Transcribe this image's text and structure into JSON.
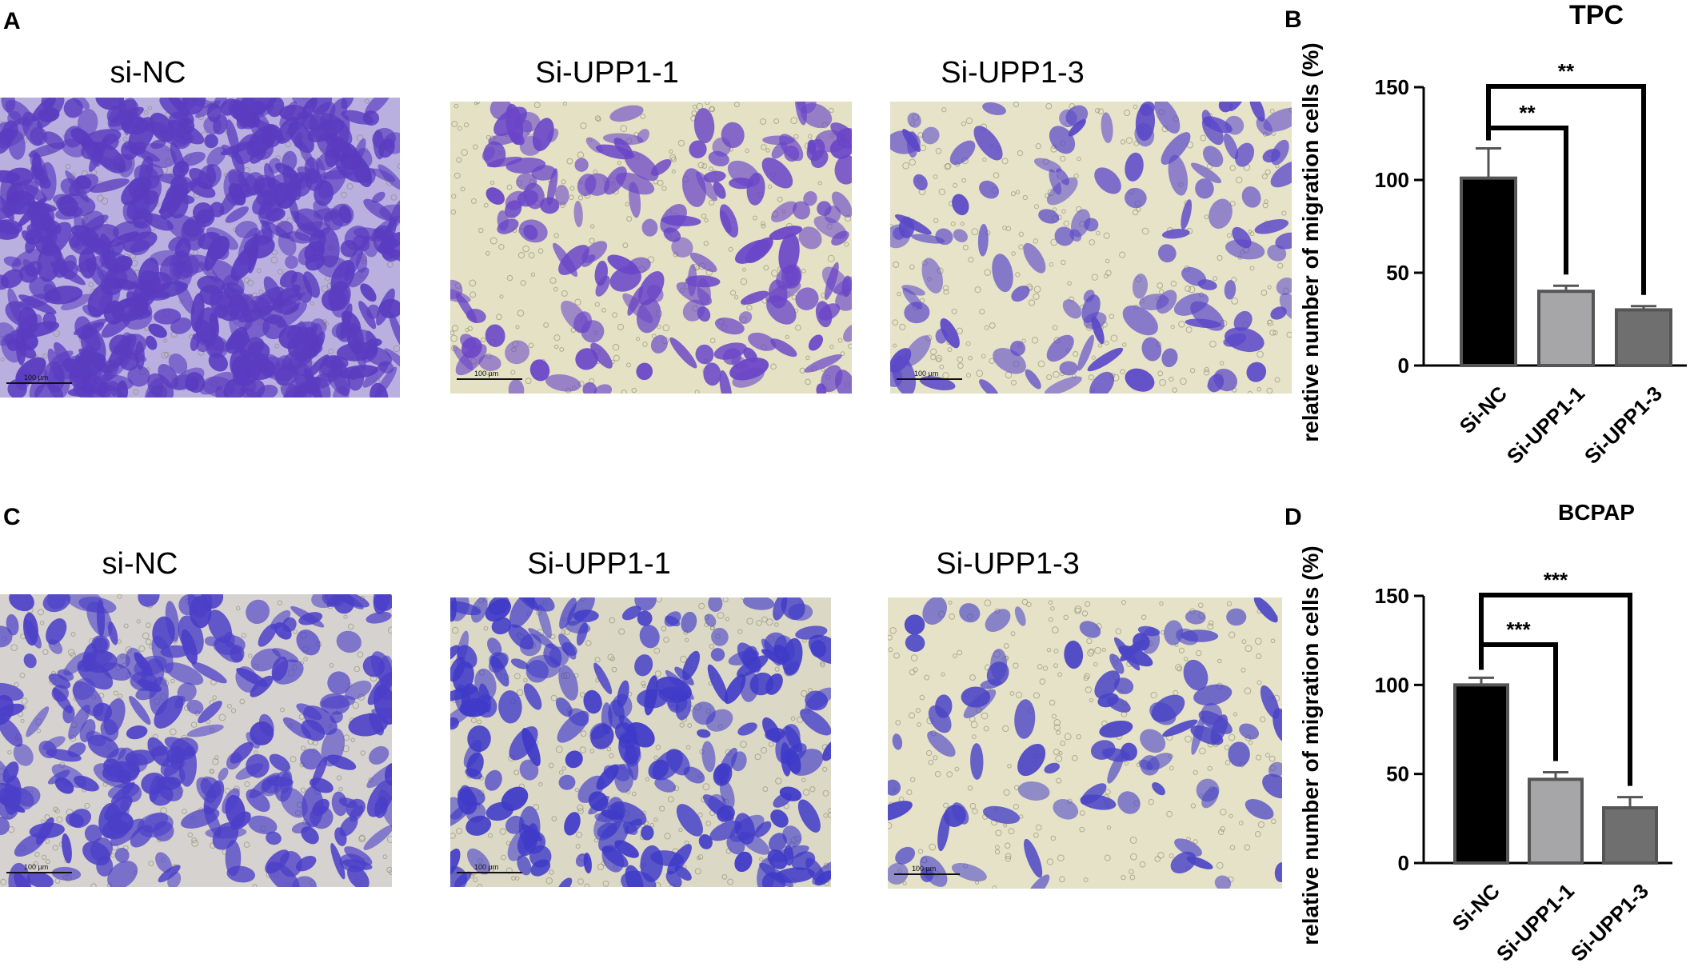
{
  "panels": {
    "A": {
      "letter": "A",
      "labels": [
        "si-NC",
        "Si-UPP1-1",
        "Si-UPP1-3"
      ],
      "scale_text": "100 µm"
    },
    "C": {
      "letter": "C",
      "labels": [
        "si-NC",
        "Si-UPP1-1",
        "Si-UPP1-3"
      ],
      "scale_text": "100 µm"
    },
    "B": {
      "letter": "B"
    },
    "D": {
      "letter": "D"
    }
  },
  "chart_data": [
    {
      "type": "bar",
      "title": "TPC",
      "ylabel": "relative number of migration cells (%)",
      "categories": [
        "Si-NC",
        "Si-UPP1-1",
        "Si-UPP1-3"
      ],
      "values": [
        101,
        40,
        30
      ],
      "errors": [
        16,
        3,
        2
      ],
      "colors": [
        "#000000",
        "#a6a6a8",
        "#6f6f6f"
      ],
      "ylim": [
        0,
        150
      ],
      "yticks": [
        0,
        50,
        100,
        150
      ],
      "significance": [
        {
          "from": 0,
          "to": 1,
          "label": "**"
        },
        {
          "from": 0,
          "to": 2,
          "label": "**"
        }
      ]
    },
    {
      "type": "bar",
      "title": "BCPAP",
      "ylabel": "relative number of migration cells (%)",
      "categories": [
        "Si-NC",
        "Si-UPP1-1",
        "Si-UPP1-3"
      ],
      "values": [
        100,
        47,
        31
      ],
      "errors": [
        4,
        4,
        6
      ],
      "colors": [
        "#000000",
        "#a6a6a8",
        "#6f6f6f"
      ],
      "ylim": [
        0,
        150
      ],
      "yticks": [
        0,
        50,
        100,
        150
      ],
      "significance": [
        {
          "from": 0,
          "to": 1,
          "label": "***"
        },
        {
          "from": 0,
          "to": 2,
          "label": "***"
        }
      ]
    }
  ]
}
